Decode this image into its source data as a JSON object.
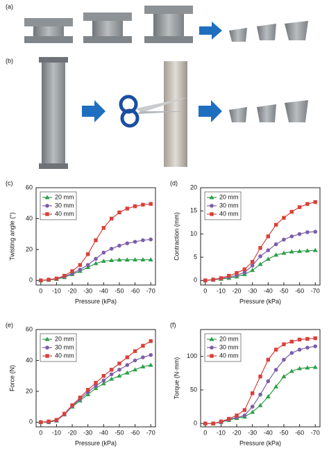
{
  "panels": [
    {
      "label": "(a)"
    },
    {
      "label": "(b)"
    }
  ],
  "chart_data": [
    {
      "type": "line",
      "label": "(c)",
      "x_label": "Pressure (kPa)",
      "y_label": "Twisting angle (°)",
      "x": [
        0,
        -5,
        -10,
        -15,
        -20,
        -25,
        -30,
        -35,
        -40,
        -45,
        -50,
        -55,
        -60,
        -65,
        -70
      ],
      "xlim": [
        3,
        -73
      ],
      "xticks": [
        0,
        -10,
        -20,
        -30,
        -40,
        -50,
        -60,
        -70
      ],
      "ylim": [
        -3,
        60
      ],
      "yticks": [
        0,
        20,
        40,
        60
      ],
      "legend": "upper-left",
      "series": [
        {
          "name": "20 mm",
          "color": "#2e9e4a",
          "values": [
            0,
            0.2,
            0.8,
            2,
            4,
            6,
            8.5,
            11,
            12.5,
            13,
            13.3,
            13.3,
            13.4,
            13.4,
            13.4
          ]
        },
        {
          "name": "30 mm",
          "color": "#7b5ea7",
          "values": [
            0,
            0.3,
            1,
            2.5,
            4.5,
            7,
            10,
            14,
            18,
            20.5,
            22.5,
            24,
            25,
            26,
            26.5
          ]
        },
        {
          "name": "40 mm",
          "color": "#d8413a",
          "values": [
            0,
            0.5,
            1.2,
            3,
            6,
            10,
            17,
            26,
            34,
            40,
            44,
            46.5,
            48,
            49,
            49.5
          ]
        }
      ]
    },
    {
      "type": "line",
      "label": "(d)",
      "x_label": "Pressure (kPa)",
      "y_label": "Contraction (mm)",
      "x": [
        0,
        -5,
        -10,
        -15,
        -20,
        -25,
        -30,
        -35,
        -40,
        -45,
        -50,
        -55,
        -60,
        -65,
        -70
      ],
      "xlim": [
        3,
        -73
      ],
      "xticks": [
        0,
        -10,
        -20,
        -30,
        -40,
        -50,
        -60,
        -70
      ],
      "ylim": [
        -1,
        20
      ],
      "yticks": [
        0,
        5,
        10,
        15,
        20
      ],
      "legend": "upper-left",
      "series": [
        {
          "name": "20 mm",
          "color": "#2e9e4a",
          "values": [
            0,
            0.1,
            0.3,
            0.5,
            0.8,
            1.3,
            2.2,
            3.5,
            4.6,
            5.5,
            5.9,
            6.2,
            6.3,
            6.4,
            6.5
          ]
        },
        {
          "name": "30 mm",
          "color": "#7b5ea7",
          "values": [
            0,
            0.1,
            0.4,
            0.7,
            1.1,
            1.7,
            3.2,
            5.2,
            6.5,
            7.8,
            8.8,
            9.5,
            10,
            10.4,
            10.5
          ]
        },
        {
          "name": "40 mm",
          "color": "#d8413a",
          "values": [
            0,
            0.2,
            0.5,
            1,
            1.6,
            2.4,
            4,
            7,
            9.5,
            12,
            13.5,
            14.8,
            15.8,
            16.5,
            16.9
          ]
        }
      ]
    },
    {
      "type": "line",
      "label": "(e)",
      "x_label": "Pressure (kPa)",
      "y_label": "Force (N)",
      "x": [
        0,
        -5,
        -10,
        -15,
        -20,
        -25,
        -30,
        -35,
        -40,
        -45,
        -50,
        -55,
        -60,
        -65,
        -70
      ],
      "xlim": [
        3,
        -73
      ],
      "xticks": [
        0,
        -10,
        -20,
        -30,
        -40,
        -50,
        -60,
        -70
      ],
      "ylim": [
        -3,
        60
      ],
      "yticks": [
        0,
        20,
        40,
        60
      ],
      "legend": "upper-left",
      "series": [
        {
          "name": "20 mm",
          "color": "#2e9e4a",
          "values": [
            0,
            0,
            1,
            5,
            10,
            14,
            18,
            22,
            25,
            28,
            30,
            32,
            34,
            36,
            37
          ]
        },
        {
          "name": "30 mm",
          "color": "#7b5ea7",
          "values": [
            0,
            0,
            1,
            5,
            10.5,
            15,
            19.5,
            23.5,
            27,
            31,
            34,
            37,
            40,
            42,
            43.5
          ]
        },
        {
          "name": "40 mm",
          "color": "#d8413a",
          "values": [
            0,
            0.5,
            1.5,
            5.5,
            11,
            16,
            21,
            25.5,
            30,
            34,
            38,
            42,
            46,
            49.5,
            52.5
          ]
        }
      ]
    },
    {
      "type": "line",
      "label": "(f)",
      "x_label": "Pressure (kPa)",
      "y_label": "Torque (N·mm)",
      "x": [
        0,
        -5,
        -10,
        -15,
        -20,
        -25,
        -30,
        -35,
        -40,
        -45,
        -50,
        -55,
        -60,
        -65,
        -70
      ],
      "xlim": [
        3,
        -73
      ],
      "xticks": [
        0,
        -10,
        -20,
        -30,
        -40,
        -50,
        -60,
        -70
      ],
      "ylim": [
        -5,
        140
      ],
      "yticks": [
        0,
        50,
        100
      ],
      "legend": "upper-left",
      "series": [
        {
          "name": "20 mm",
          "color": "#2e9e4a",
          "values": [
            0,
            0,
            2,
            5,
            8,
            10,
            17,
            27,
            40,
            55,
            70,
            78,
            82,
            83,
            84
          ]
        },
        {
          "name": "30 mm",
          "color": "#7b5ea7",
          "values": [
            0,
            0,
            2,
            6,
            9,
            12,
            25,
            43,
            63,
            80,
            95,
            105,
            110,
            113,
            115
          ]
        },
        {
          "name": "40 mm",
          "color": "#d8413a",
          "values": [
            0,
            0,
            3,
            7,
            12,
            20,
            45,
            70,
            95,
            110,
            118,
            122,
            125,
            126,
            127
          ]
        }
      ]
    }
  ]
}
